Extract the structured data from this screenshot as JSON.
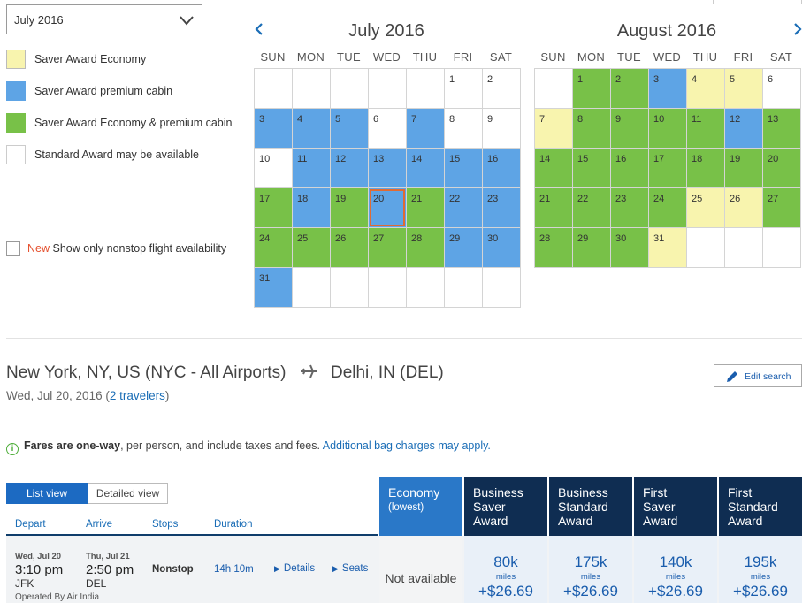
{
  "month_select": {
    "value": "July 2016"
  },
  "legend": [
    {
      "label": "Saver Award Economy",
      "color": "#f8f4ae"
    },
    {
      "label": "Saver Award premium cabin",
      "color": "#5ea4e5"
    },
    {
      "label": "Saver Award Economy & premium cabin",
      "color": "#78c148"
    },
    {
      "label": "Standard Award may be available",
      "color": "#ffffff"
    }
  ],
  "nonstop": {
    "new_label": "New",
    "label": "Show only nonstop flight availability"
  },
  "calendars": [
    {
      "title": "July 2016",
      "dow": [
        "SUN",
        "MON",
        "TUE",
        "WED",
        "THU",
        "FRI",
        "SAT"
      ],
      "weeks": [
        [
          [
            "",
            ""
          ],
          [
            "",
            ""
          ],
          [
            "",
            ""
          ],
          [
            "",
            ""
          ],
          [
            "",
            ""
          ],
          [
            "1",
            "white"
          ],
          [
            "2",
            "white"
          ]
        ],
        [
          [
            "3",
            "blue"
          ],
          [
            "4",
            "blue"
          ],
          [
            "5",
            "blue"
          ],
          [
            "6",
            "white"
          ],
          [
            "7",
            "blue"
          ],
          [
            "8",
            "white"
          ],
          [
            "9",
            "white"
          ]
        ],
        [
          [
            "10",
            "white"
          ],
          [
            "11",
            "blue"
          ],
          [
            "12",
            "blue"
          ],
          [
            "13",
            "blue"
          ],
          [
            "14",
            "blue"
          ],
          [
            "15",
            "blue"
          ],
          [
            "16",
            "blue"
          ]
        ],
        [
          [
            "17",
            "green"
          ],
          [
            "18",
            "blue"
          ],
          [
            "19",
            "green"
          ],
          [
            "20",
            "blue*"
          ],
          [
            "21",
            "green"
          ],
          [
            "22",
            "blue"
          ],
          [
            "23",
            "blue"
          ]
        ],
        [
          [
            "24",
            "green"
          ],
          [
            "25",
            "green"
          ],
          [
            "26",
            "green"
          ],
          [
            "27",
            "green"
          ],
          [
            "28",
            "green"
          ],
          [
            "29",
            "blue"
          ],
          [
            "30",
            "blue"
          ]
        ],
        [
          [
            "31",
            "blue"
          ],
          [
            "",
            ""
          ],
          [
            "",
            ""
          ],
          [
            "",
            ""
          ],
          [
            "",
            ""
          ],
          [
            "",
            ""
          ],
          [
            "",
            ""
          ]
        ]
      ]
    },
    {
      "title": "August 2016",
      "dow": [
        "SUN",
        "MON",
        "TUE",
        "WED",
        "THU",
        "FRI",
        "SAT"
      ],
      "weeks": [
        [
          [
            "",
            ""
          ],
          [
            "1",
            "green"
          ],
          [
            "2",
            "green"
          ],
          [
            "3",
            "blue"
          ],
          [
            "4",
            "yellow"
          ],
          [
            "5",
            "yellow"
          ],
          [
            "6",
            "white"
          ]
        ],
        [
          [
            "7",
            "yellow"
          ],
          [
            "8",
            "green"
          ],
          [
            "9",
            "green"
          ],
          [
            "10",
            "green"
          ],
          [
            "11",
            "green"
          ],
          [
            "12",
            "blue"
          ],
          [
            "13",
            "green"
          ]
        ],
        [
          [
            "14",
            "green"
          ],
          [
            "15",
            "green"
          ],
          [
            "16",
            "green"
          ],
          [
            "17",
            "green"
          ],
          [
            "18",
            "green"
          ],
          [
            "19",
            "green"
          ],
          [
            "20",
            "green"
          ]
        ],
        [
          [
            "21",
            "green"
          ],
          [
            "22",
            "green"
          ],
          [
            "23",
            "green"
          ],
          [
            "24",
            "green"
          ],
          [
            "25",
            "yellow"
          ],
          [
            "26",
            "yellow"
          ],
          [
            "27",
            "green"
          ]
        ],
        [
          [
            "28",
            "green"
          ],
          [
            "29",
            "green"
          ],
          [
            "30",
            "green"
          ],
          [
            "31",
            "yellow"
          ],
          [
            "",
            ""
          ],
          [
            "",
            ""
          ],
          [
            "",
            ""
          ]
        ]
      ]
    }
  ],
  "route": {
    "origin": "New York, NY, US (NYC - All Airports)",
    "destination": "Delhi, IN (DEL)"
  },
  "subline": {
    "date": "Wed, Jul 20, 2016 (",
    "travelers": "2 travelers",
    "close": ")"
  },
  "edit_search": "Edit search",
  "fares_note": {
    "bold": "Fares are one-way",
    "rest": ", per person, and include taxes and fees. ",
    "link": "Additional bag charges may apply."
  },
  "tabs": {
    "list": "List view",
    "detailed": "Detailed view"
  },
  "columns": {
    "depart": "Depart",
    "arrive": "Arrive",
    "stops": "Stops",
    "duration": "Duration"
  },
  "fare_headers": [
    {
      "title": "Economy",
      "sub": "(lowest)"
    },
    {
      "title": "Business Saver Award",
      "sub": ""
    },
    {
      "title": "Business Standard Award",
      "sub": ""
    },
    {
      "title": "First Saver Award",
      "sub": ""
    },
    {
      "title": "First Standard Award",
      "sub": ""
    }
  ],
  "flight": {
    "depart_date": "Wed, Jul 20",
    "depart_time": "3:10 pm",
    "depart_airport": "JFK",
    "arrive_date": "Thu, Jul 21",
    "arrive_time": "2:50 pm",
    "arrive_airport": "DEL",
    "stops": "Nonstop",
    "duration": "14h 10m",
    "details": "Details",
    "seats": "Seats",
    "operated_by": "Operated By Air India"
  },
  "fares": [
    {
      "not_available": "Not available"
    },
    {
      "miles": "80k",
      "unit": "miles",
      "tax": "+$26.69"
    },
    {
      "miles": "175k",
      "unit": "miles",
      "tax": "+$26.69"
    },
    {
      "miles": "140k",
      "unit": "miles",
      "tax": "+$26.69"
    },
    {
      "miles": "195k",
      "unit": "miles",
      "tax": "+$26.69"
    }
  ]
}
